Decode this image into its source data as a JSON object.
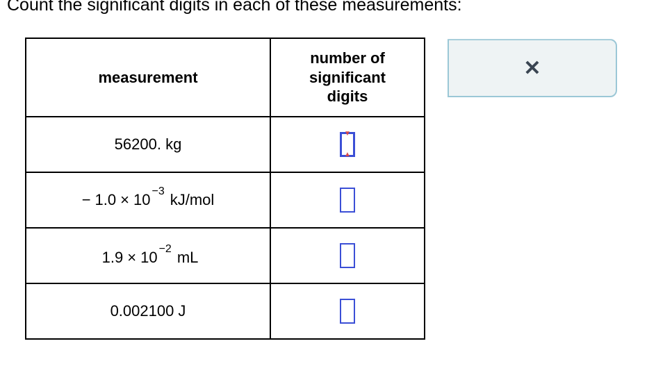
{
  "prompt": "Count the significant digits in each of these measurements:",
  "table": {
    "headers": {
      "measurement": "measurement",
      "sigdigits_line1": "number of",
      "sigdigits_line2": "significant",
      "sigdigits_line3": "digits"
    },
    "rows": [
      {
        "measurement": {
          "display": "56200. kg",
          "type": "plain"
        },
        "input_active": true
      },
      {
        "measurement": {
          "type": "sci",
          "prefix": "−",
          "coeff": "1.0",
          "times": "×",
          "base": "10",
          "exp": "−3",
          "unit": "kJ/mol"
        },
        "input_active": false
      },
      {
        "measurement": {
          "type": "sci",
          "prefix": "",
          "coeff": "1.9",
          "times": "×",
          "base": "10",
          "exp": "−2",
          "unit": "mL"
        },
        "input_active": false
      },
      {
        "measurement": {
          "display": "0.002100 J",
          "type": "plain"
        },
        "input_active": false
      }
    ]
  },
  "feedback": {
    "icon": "x-icon",
    "glyph": "✕"
  },
  "colors": {
    "input_border": "#3b4fd6",
    "panel_border": "#9bc7d6",
    "panel_bg": "#eef3f4",
    "x_color": "#3a4552",
    "cursor_red": "#d94a4a"
  }
}
